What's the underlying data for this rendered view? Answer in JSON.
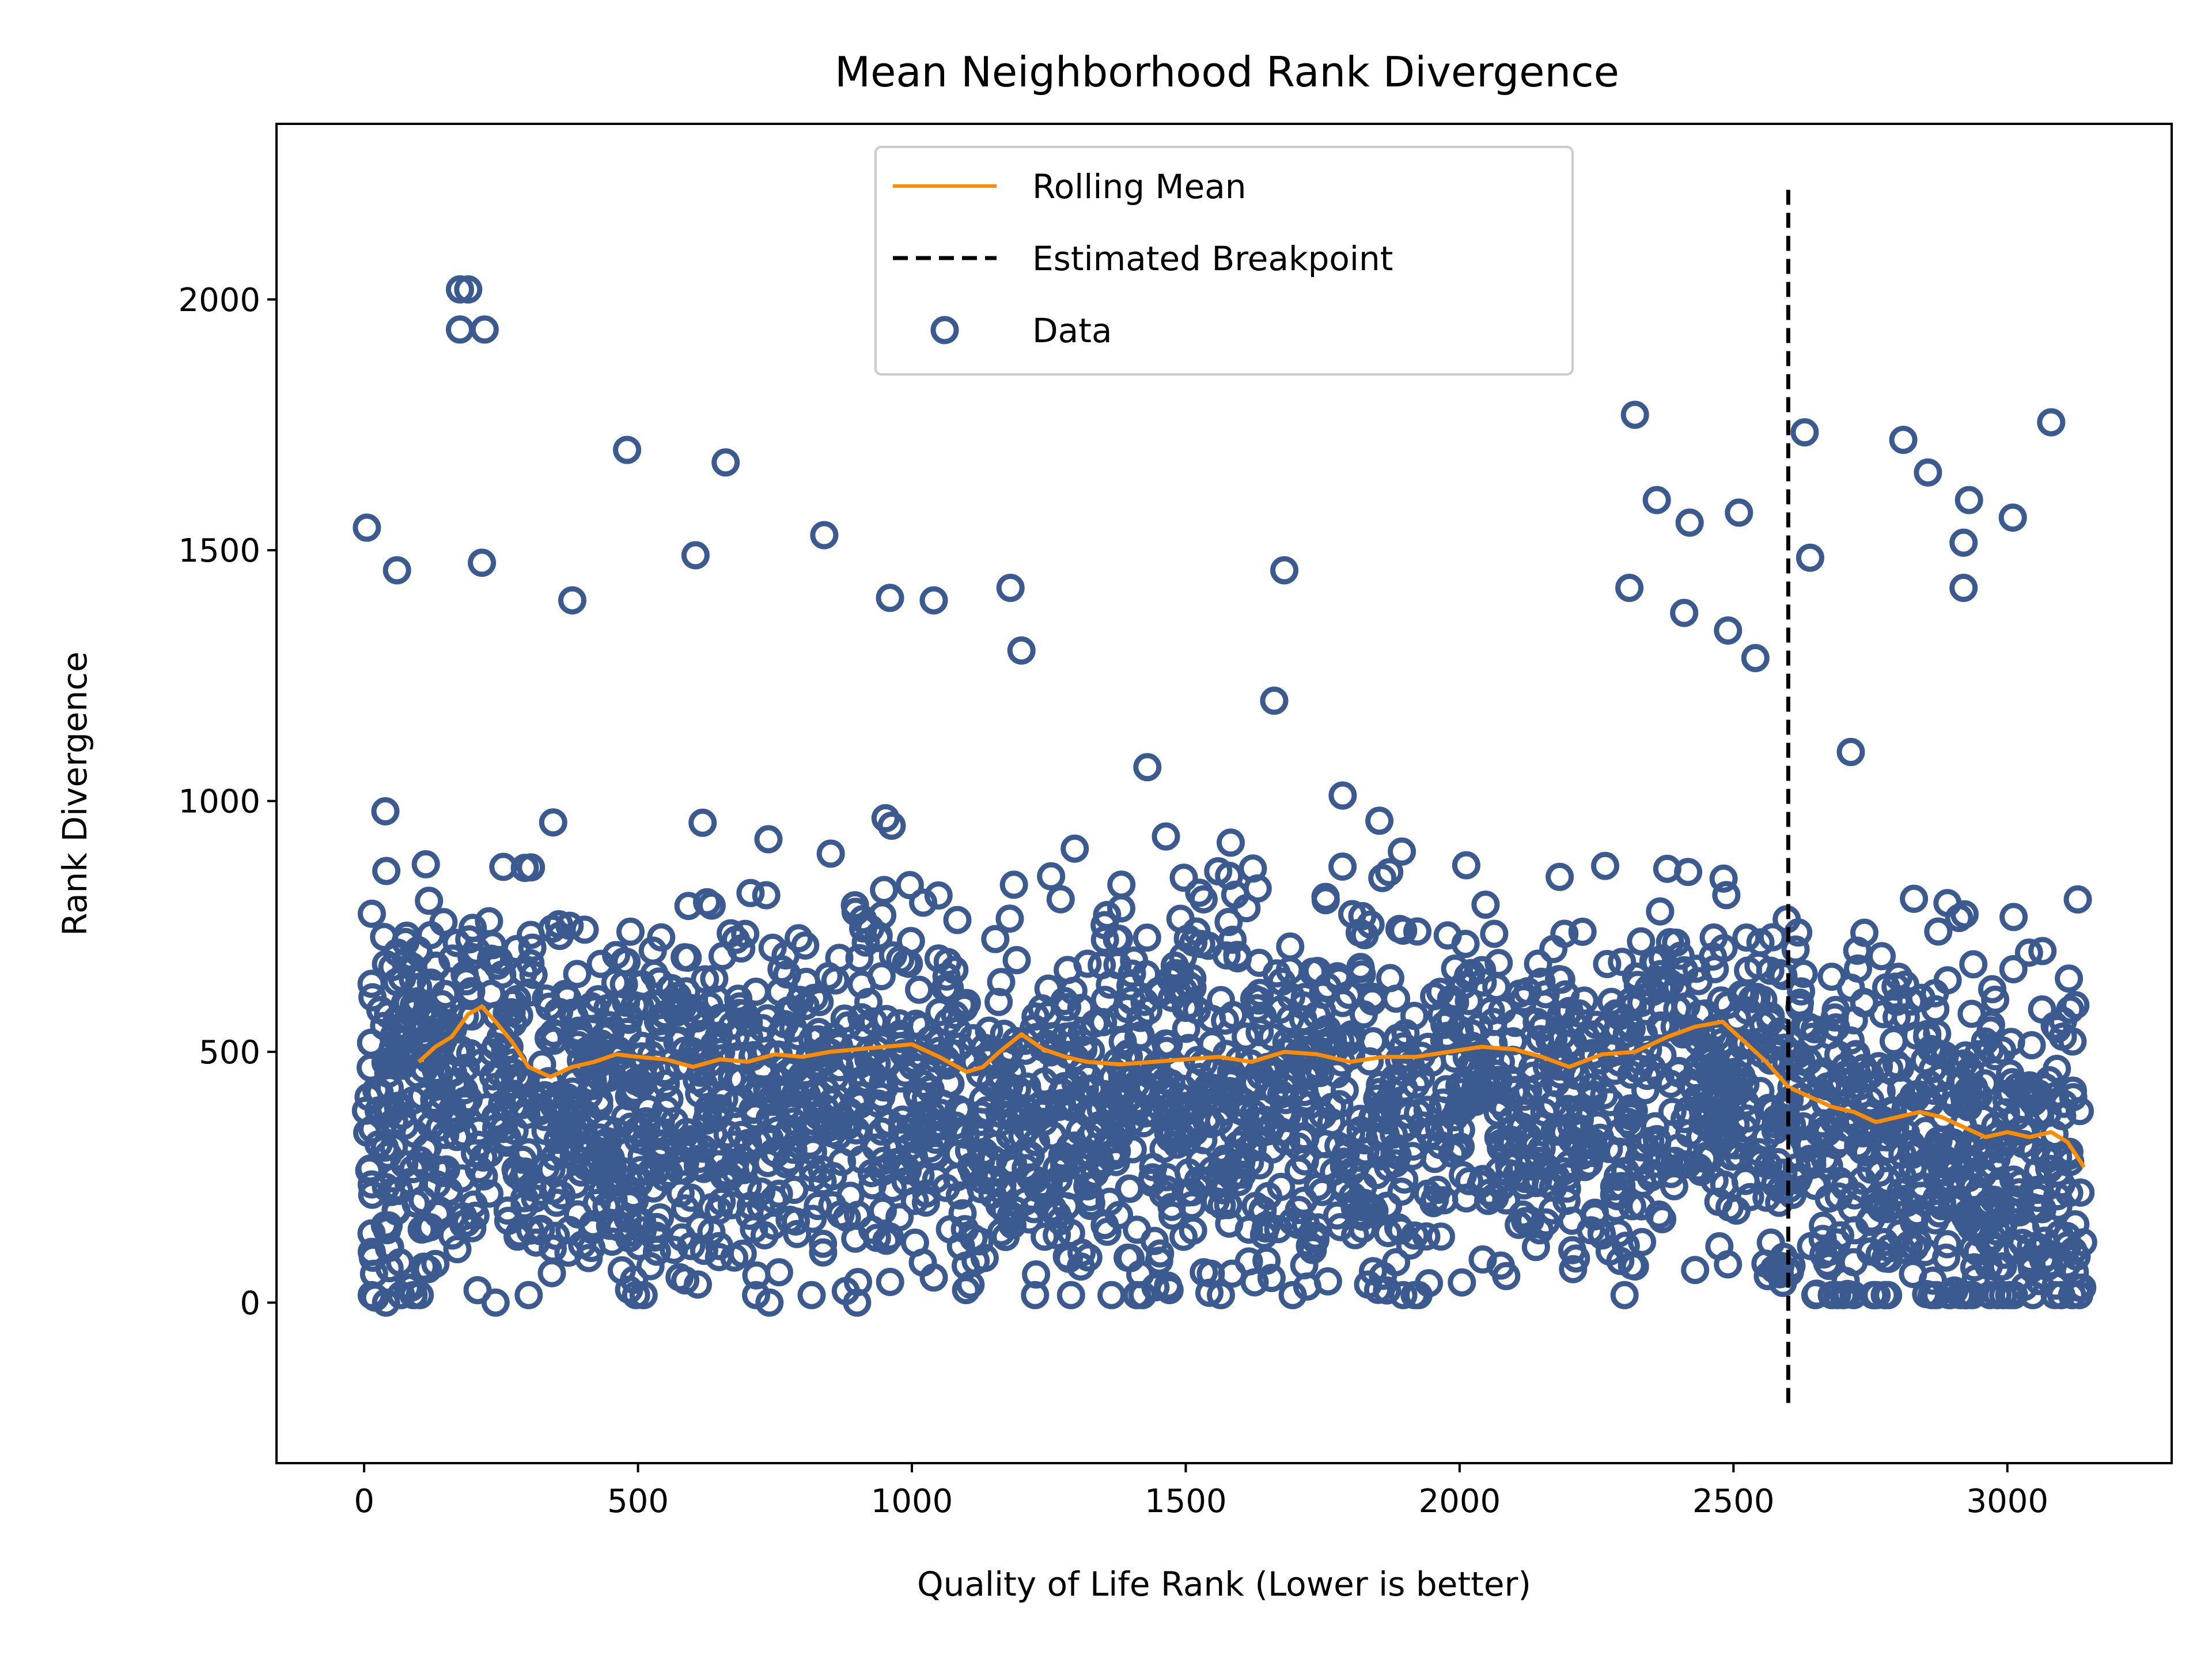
{
  "chart_data": {
    "type": "scatter",
    "title": "Mean Neighborhood Rank Divergence",
    "xlabel": "Quality of Life Rank (Lower is better)",
    "ylabel": "Rank Divergence",
    "xlim": [
      -160,
      3300
    ],
    "ylim": [
      -320,
      2350
    ],
    "xticks": [
      0,
      500,
      1000,
      1500,
      2000,
      2500,
      3000
    ],
    "xtick_labels": [
      "0",
      "500",
      "1000",
      "1500",
      "2000",
      "2500",
      "3000"
    ],
    "yticks": [
      0,
      500,
      1000,
      1500,
      2000
    ],
    "ytick_labels": [
      "0",
      "500",
      "1000",
      "1500",
      "2000"
    ],
    "grid": false,
    "legend_position": "top-center",
    "legend": [
      {
        "label": "Rolling Mean",
        "kind": "line",
        "color": "#ff8c00"
      },
      {
        "label": "Estimated Breakpoint",
        "kind": "dashed-line",
        "color": "#000000"
      },
      {
        "label": "Data",
        "kind": "marker",
        "color": "#3b5a8f"
      }
    ],
    "colors": {
      "data": "#3b5a8f",
      "rolling_mean": "#ff8c00",
      "breakpoint": "#000000"
    },
    "breakpoint": {
      "x": 2600,
      "y_range": [
        -200,
        2220
      ]
    },
    "rolling_mean": {
      "name": "Rolling Mean",
      "x": [
        100,
        130,
        160,
        190,
        215,
        240,
        270,
        300,
        340,
        380,
        420,
        460,
        500,
        550,
        600,
        650,
        700,
        750,
        800,
        850,
        900,
        950,
        1000,
        1050,
        1100,
        1130,
        1160,
        1200,
        1240,
        1280,
        1320,
        1380,
        1440,
        1500,
        1560,
        1620,
        1680,
        1740,
        1800,
        1860,
        1920,
        1980,
        2040,
        2100,
        2150,
        2200,
        2260,
        2320,
        2380,
        2430,
        2480,
        2520,
        2560,
        2600,
        2640,
        2680,
        2720,
        2760,
        2800,
        2840,
        2880,
        2920,
        2960,
        3000,
        3040,
        3080,
        3110,
        3140
      ],
      "y": [
        480,
        510,
        530,
        575,
        590,
        560,
        520,
        470,
        450,
        470,
        480,
        495,
        490,
        485,
        470,
        485,
        480,
        495,
        490,
        500,
        505,
        510,
        515,
        490,
        460,
        470,
        500,
        535,
        505,
        490,
        480,
        475,
        480,
        485,
        490,
        480,
        500,
        495,
        480,
        490,
        490,
        500,
        510,
        505,
        490,
        470,
        495,
        500,
        530,
        550,
        560,
        520,
        480,
        430,
        410,
        390,
        380,
        360,
        370,
        380,
        370,
        350,
        330,
        340,
        330,
        340,
        320,
        270
      ]
    },
    "scatter_notable_points": {
      "name": "Data",
      "x": [
        175,
        190,
        175,
        220,
        5,
        60,
        215,
        480,
        660,
        840,
        605,
        1180,
        1680,
        2320,
        2360,
        2420,
        2510,
        2630,
        2640,
        2810,
        2855,
        2920,
        2930,
        3010,
        3080,
        2920,
        2310,
        2410,
        2490,
        2540,
        960,
        1040,
        1200,
        380,
        20,
        40,
        80,
        240,
        580,
        740,
        900,
        1020,
        1040,
        2430,
        2600,
        3130
      ],
      "y": [
        1940,
        2020,
        2020,
        1940,
        1545,
        1460,
        1475,
        1700,
        1675,
        1530,
        1490,
        1425,
        1460,
        1770,
        1600,
        1555,
        1575,
        1735,
        1485,
        1720,
        1655,
        1515,
        1600,
        1565,
        1755,
        1425,
        1425,
        1375,
        1340,
        1285,
        1405,
        1400,
        1300,
        1400,
        10,
        0,
        30,
        0,
        130,
        0,
        0,
        80,
        50,
        65,
        60,
        30
      ]
    }
  }
}
